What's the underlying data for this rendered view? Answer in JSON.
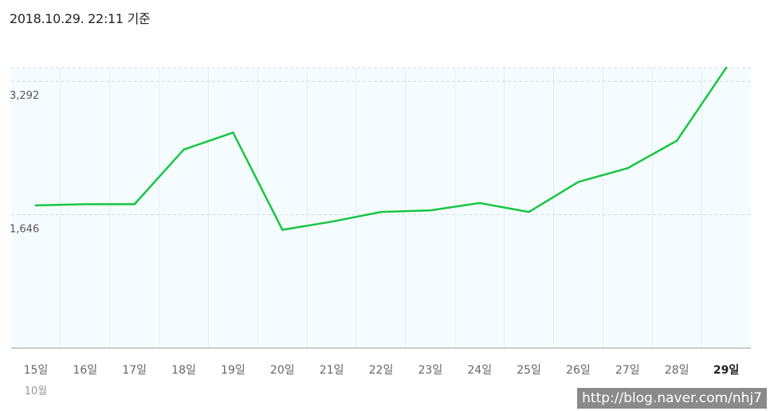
{
  "header": {
    "timestamp": "2018.10.29. 22:11 기준"
  },
  "chart_data": {
    "type": "line",
    "categories": [
      "15일",
      "16일",
      "17일",
      "18일",
      "19일",
      "20일",
      "21일",
      "22일",
      "23일",
      "24일",
      "25일",
      "26일",
      "27일",
      "28일",
      "29일"
    ],
    "month_label": "10월",
    "active_category": "29일",
    "values": [
      1760,
      1775,
      1775,
      2450,
      2660,
      1460,
      1560,
      1680,
      1700,
      1790,
      1680,
      2050,
      2220,
      2560,
      3460
    ],
    "yticks": [
      1646,
      3292
    ],
    "ytick_labels": [
      "1,646",
      "3,292"
    ],
    "ylim": [
      0,
      3460
    ],
    "line_color": "#17c644",
    "plot_background": "#f5fcff",
    "grid_color": "#e2eef3"
  },
  "watermark": {
    "text": "http://blog.naver.com/nhj7"
  }
}
